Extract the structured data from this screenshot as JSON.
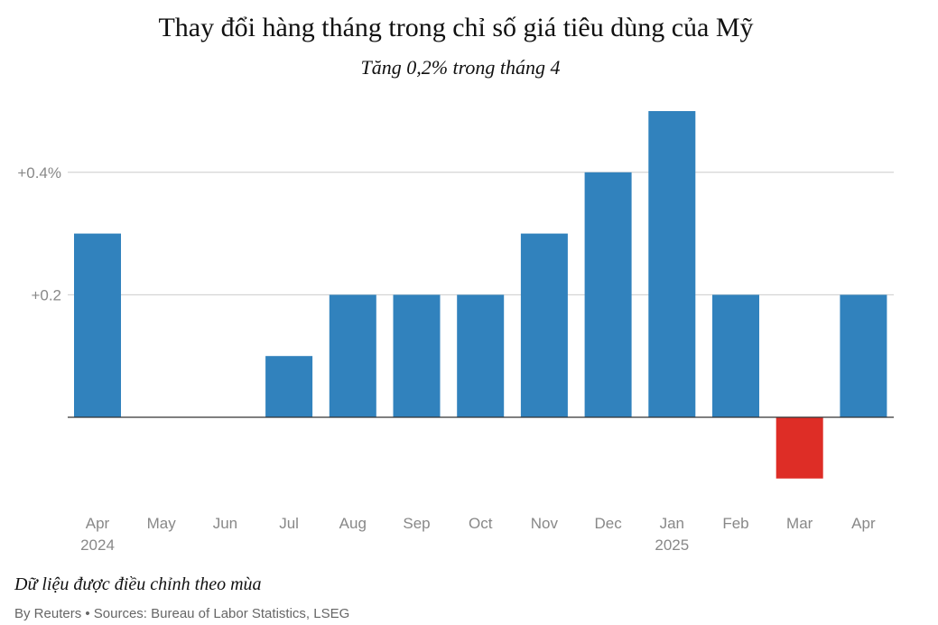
{
  "title": "Thay đổi hàng tháng trong chỉ số giá tiêu dùng của Mỹ",
  "subtitle": "Tăng 0,2% trong tháng 4",
  "note": "Dữ liệu được điều chỉnh theo mùa",
  "source": "By Reuters • Sources: Bureau of Labor Statistics, LSEG",
  "colors": {
    "positive": "#3182bd",
    "negative": "#de2d26",
    "grid": "#cccccc",
    "axis": "#333333"
  },
  "chart_data": {
    "type": "bar",
    "categories": [
      "Apr",
      "May",
      "Jun",
      "Jul",
      "Aug",
      "Sep",
      "Oct",
      "Nov",
      "Dec",
      "Jan",
      "Feb",
      "Mar",
      "Apr"
    ],
    "year_labels": [
      "2024",
      "",
      "",
      "",
      "",
      "",
      "",
      "",
      "",
      "2025",
      "",
      "",
      ""
    ],
    "values": [
      0.3,
      0.0,
      0.0,
      0.1,
      0.2,
      0.2,
      0.2,
      0.3,
      0.4,
      0.5,
      0.2,
      -0.1,
      0.2
    ],
    "yticks": [
      0.2,
      0.4
    ],
    "ytick_labels": [
      "+0.2",
      "+0.4%"
    ],
    "ylim": [
      -0.1,
      0.5
    ],
    "grid": true,
    "legend": false
  }
}
